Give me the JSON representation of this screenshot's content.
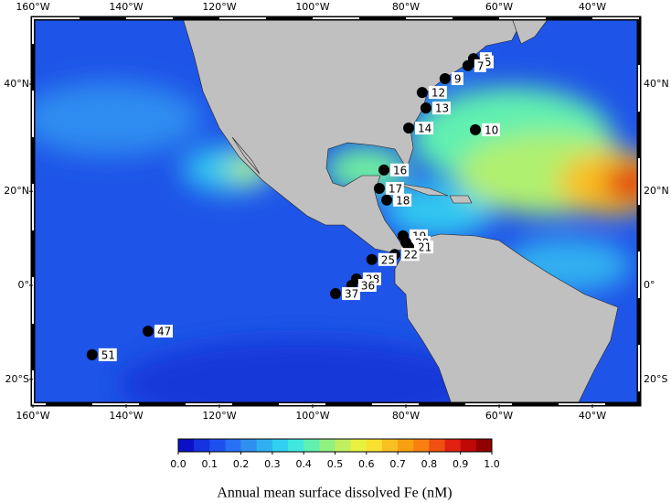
{
  "map": {
    "xticks": [
      {
        "value": -160,
        "label": "160°W"
      },
      {
        "value": -140,
        "label": "140°W"
      },
      {
        "value": -120,
        "label": "120°W"
      },
      {
        "value": -100,
        "label": "100°W"
      },
      {
        "value": -80,
        "label": "80°W"
      },
      {
        "value": -60,
        "label": "60°W"
      },
      {
        "value": -40,
        "label": "40°W"
      }
    ],
    "yticks": [
      {
        "value": 40,
        "label": "40°N"
      },
      {
        "value": 20,
        "label": "20°N"
      },
      {
        "value": 0,
        "label": "0°"
      },
      {
        "value": -20,
        "label": "20°S"
      }
    ],
    "stations": [
      {
        "label": "6",
        "lon": -65.5,
        "lat": 44.1
      },
      {
        "label": "5",
        "lon": -65.1,
        "lat": 43.6
      },
      {
        "label": "7",
        "lon": -66.7,
        "lat": 43.0
      },
      {
        "label": "9",
        "lon": -71.6,
        "lat": 40.9
      },
      {
        "label": "12",
        "lon": -76.5,
        "lat": 38.6
      },
      {
        "label": "13",
        "lon": -75.7,
        "lat": 35.9
      },
      {
        "label": "14",
        "lon": -79.4,
        "lat": 32.3
      },
      {
        "label": "10",
        "lon": -65.1,
        "lat": 32.0
      },
      {
        "label": "16",
        "lon": -84.7,
        "lat": 24.3
      },
      {
        "label": "17",
        "lon": -85.7,
        "lat": 20.6
      },
      {
        "label": "18",
        "lon": -84.1,
        "lat": 18.2
      },
      {
        "label": "19",
        "lon": -80.6,
        "lat": 10.7
      },
      {
        "label": "20",
        "lon": -80.0,
        "lat": 9.3
      },
      {
        "label": "21",
        "lon": -79.4,
        "lat": 8.3
      },
      {
        "label": "22",
        "lon": -82.4,
        "lat": 6.7
      },
      {
        "label": "25",
        "lon": -87.3,
        "lat": 5.6
      },
      {
        "label": "28",
        "lon": -90.6,
        "lat": 1.4
      },
      {
        "label": "36",
        "lon": -91.6,
        "lat": 0.0
      },
      {
        "label": "37",
        "lon": -95.1,
        "lat": -1.8
      },
      {
        "label": "47",
        "lon": -135.3,
        "lat": -9.9
      },
      {
        "label": "51",
        "lon": -147.3,
        "lat": -14.9
      }
    ]
  },
  "colorbar": {
    "label": "Annual mean surface dissolved Fe (nM)",
    "lim": [
      0,
      1
    ],
    "colors": [
      "#0a10c8",
      "#1432e0",
      "#1e50f0",
      "#2870f5",
      "#3090f0",
      "#30b0f0",
      "#30d0f0",
      "#40e8e0",
      "#60f0b0",
      "#90f080",
      "#c0f060",
      "#e8f040",
      "#f8e030",
      "#f8c020",
      "#f8a010",
      "#f88010",
      "#f05010",
      "#e02010",
      "#c00808",
      "#900000"
    ],
    "ticks": [
      {
        "value": 0,
        "label": "0.0"
      },
      {
        "value": 0.1,
        "label": "0.1"
      },
      {
        "value": 0.2,
        "label": "0.2"
      },
      {
        "value": 0.3,
        "label": "0.3"
      },
      {
        "value": 0.4,
        "label": "0.4"
      },
      {
        "value": 0.5,
        "label": "0.5"
      },
      {
        "value": 0.6,
        "label": "0.6"
      },
      {
        "value": 0.7,
        "label": "0.7"
      },
      {
        "value": 0.8,
        "label": "0.8"
      },
      {
        "value": 0.9,
        "label": "0.9"
      },
      {
        "value": 1,
        "label": "1.0"
      }
    ]
  }
}
